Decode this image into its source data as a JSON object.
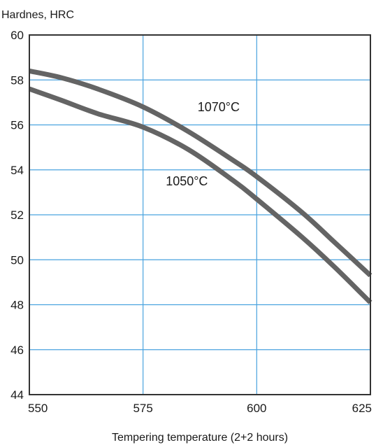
{
  "chart_data": {
    "type": "line",
    "title": "",
    "ylabel": "Hardnes, HRC",
    "xlabel": "Tempering temperature (2+2 hours)",
    "xlim": [
      550,
      625
    ],
    "ylim": [
      44,
      60
    ],
    "x_ticks": [
      550,
      575,
      600,
      625
    ],
    "y_ticks": [
      44,
      46,
      48,
      50,
      52,
      54,
      56,
      58,
      60
    ],
    "grid": true,
    "colors": {
      "grid": "#4aa3df",
      "line": "#646464",
      "frame": "#333333"
    },
    "series": [
      {
        "name": "1070°C",
        "x": [
          550,
          557,
          565,
          575,
          585,
          595,
          600,
          610,
          617,
          625
        ],
        "y": [
          58.4,
          58.1,
          57.6,
          56.8,
          55.7,
          54.4,
          53.7,
          52.1,
          50.8,
          49.3
        ]
      },
      {
        "name": "1050°C",
        "x": [
          550,
          557,
          565,
          575,
          585,
          595,
          600,
          610,
          617,
          625
        ],
        "y": [
          57.6,
          57.1,
          56.5,
          55.9,
          54.9,
          53.5,
          52.7,
          51.0,
          49.7,
          48.1
        ]
      }
    ],
    "annotations": [
      {
        "text": "1070°C",
        "x": 587,
        "y": 56.6
      },
      {
        "text": "1050°C",
        "x": 580,
        "y": 53.3
      }
    ]
  }
}
